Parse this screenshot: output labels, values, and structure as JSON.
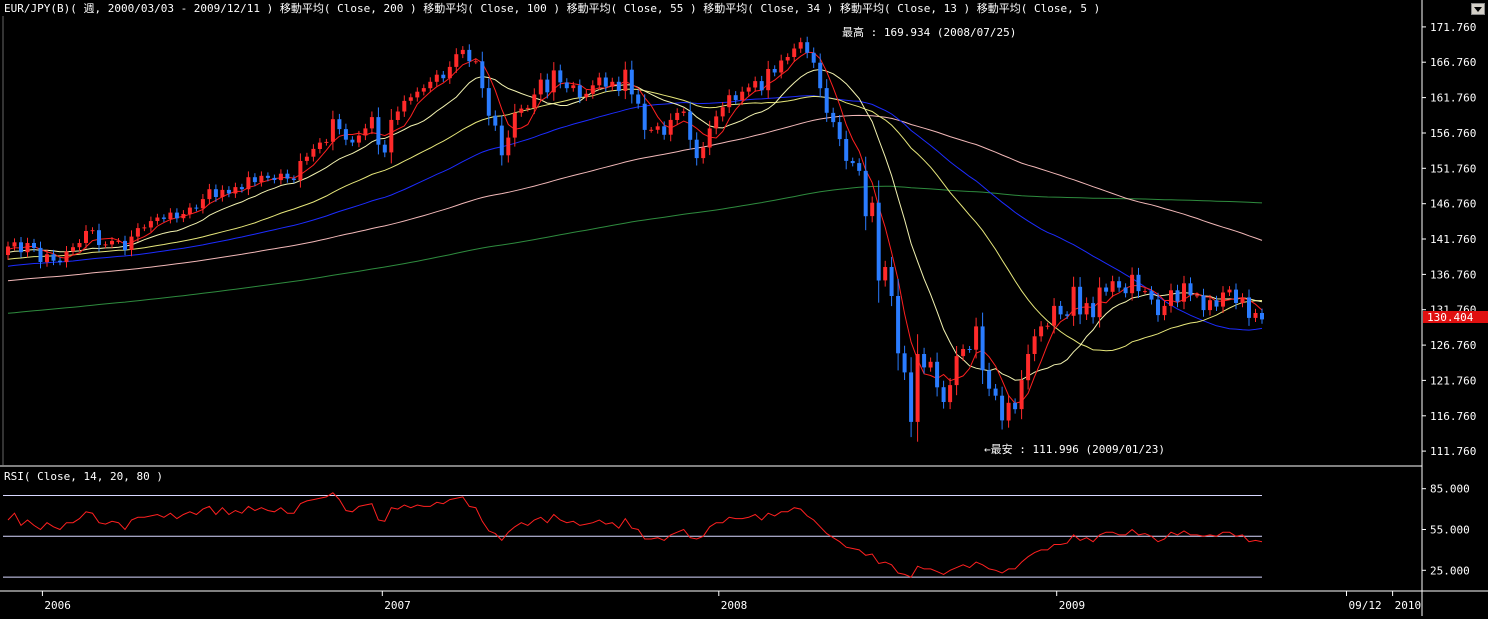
{
  "header": {
    "main_title": "EUR/JPY(B)( 週, 2000/03/03 - 2009/12/11 )  移動平均( Close, 200 )  移動平均( Close, 100 )  移動平均( Close, 55 )  移動平均( Close, 34 )  移動平均( Close, 13 )  移動平均( Close, 5 )",
    "rsi_title": "RSI( Close, 14, 20, 80 )"
  },
  "annotations": {
    "high_label": "最高 : 169.934 (2008/07/25)",
    "low_label": "←最安 : 111.996 (2009/01/23)",
    "last_price": "130.404"
  },
  "colors": {
    "up": "#ff2a2a",
    "down": "#2a7cff",
    "ma200": "#2e8b3e",
    "ma100": "#f2b8b8",
    "ma55": "#1c2cff",
    "ma34": "#e6e67a",
    "ma13": "#f2f2b0",
    "ma5": "#ff2020",
    "rsi": "#ff2020",
    "rsi_levels": "#d8d8ff",
    "frame": "#ffffff",
    "price_tag": "#e01010"
  },
  "chart_data": [
    {
      "type": "candlestick",
      "title": "EUR/JPY(B)( 週, 2000/03/03 - 2009/12/11 )",
      "series_names": [
        "移動平均( Close, 200 )",
        "移動平均( Close, 100 )",
        "移動平均( Close, 55 )",
        "移動平均( Close, 34 )",
        "移動平均( Close, 13 )",
        "移動平均( Close, 5 )"
      ],
      "y_ticks": [
        "171.760",
        "166.760",
        "161.760",
        "156.760",
        "151.760",
        "146.760",
        "141.760",
        "136.760",
        "131.760",
        "126.760",
        "121.760",
        "116.760",
        "111.760"
      ],
      "ylim": [
        109.8,
        173.3
      ],
      "x_start": "2005/11/25",
      "x_ticks": [
        "2006",
        "2007",
        "2008",
        "2009",
        "09/12",
        "2010"
      ],
      "closes": [
        140.7,
        141.3,
        139.9,
        141.2,
        140.5,
        138.5,
        139.6,
        138.7,
        138.5,
        140,
        140.6,
        141.2,
        142.9,
        143,
        140.9,
        141,
        141.5,
        141.5,
        140.2,
        142.1,
        143.3,
        143.4,
        144.3,
        144.8,
        144.6,
        145.5,
        144.7,
        145.3,
        146.2,
        146.1,
        147.4,
        148.8,
        147.7,
        148.7,
        148.2,
        149.1,
        148.8,
        150.5,
        149.8,
        150.7,
        150.4,
        150.1,
        151,
        150.3,
        150.1,
        152.8,
        153.4,
        154.5,
        155.4,
        155.5,
        158.7,
        157.3,
        155.8,
        155.4,
        156.4,
        157.4,
        159,
        155.1,
        154,
        158.6,
        159.8,
        161.3,
        161.8,
        162.6,
        163.1,
        164,
        165,
        164.5,
        166.1,
        167.9,
        168.5,
        166.9,
        166.9,
        163.1,
        159.2,
        157.8,
        153.6,
        156.1,
        159.6,
        160.2,
        160.3,
        162.2,
        164.3,
        162.5,
        165.6,
        163.9,
        163.1,
        163.5,
        161.8,
        162.3,
        163.5,
        164.6,
        163.3,
        164,
        162.7,
        165.7,
        162.2,
        160.9,
        157.2,
        157.2,
        157.7,
        156.5,
        158.6,
        159.6,
        159.8,
        155.8,
        153.2,
        154.7,
        157.4,
        159.1,
        160.4,
        162.1,
        161.4,
        162.6,
        163.2,
        164.1,
        162.8,
        165.8,
        165.3,
        167,
        167.5,
        168.7,
        169.6,
        168.1,
        166.7,
        163.1,
        159.6,
        158.3,
        155.9,
        152.8,
        152.5,
        151.4,
        145,
        146.9,
        135.9,
        137.8,
        133.7,
        125.6,
        122.9,
        115.9,
        125.5,
        123.6,
        124.4,
        120.8,
        118.7,
        121.1,
        125.2,
        126.2,
        126.1,
        129.4,
        123.2,
        120.6,
        119.6,
        116.1,
        118.6,
        117.7,
        121.8,
        125.5,
        128,
        129.4,
        129.5,
        132.3,
        131.1,
        130.9,
        135,
        131.1,
        132.7,
        130.7,
        134.9,
        134.3,
        135.8,
        134.9,
        134.1,
        136.7,
        134.4,
        134.4,
        133.2,
        131,
        132.3,
        134.5,
        132.9,
        135.5,
        133.8,
        133.8,
        131.7,
        133.1,
        132.2,
        134.2,
        134.6,
        132.7,
        133.5,
        130.6,
        131.3,
        130.4
      ],
      "rsi": {
        "title": "RSI( Close, 14, 20, 80 )",
        "levels": [
          80,
          50,
          20
        ],
        "y_ticks": [
          "85.000",
          "55.000",
          "25.000"
        ],
        "ylim": [
          10.5,
          99.5
        ],
        "values": [
          62,
          67,
          58,
          62,
          58,
          55,
          60,
          57,
          55,
          60,
          60,
          63,
          68,
          67,
          60,
          59,
          61,
          60,
          55,
          62,
          64,
          64,
          65,
          66,
          64,
          67,
          63,
          66,
          68,
          66,
          70,
          72,
          66,
          71,
          66,
          69,
          67,
          72,
          69,
          71,
          69,
          68,
          71,
          67,
          67,
          74,
          76,
          77,
          78,
          79,
          82,
          77,
          69,
          68,
          72,
          73,
          74,
          62,
          61,
          71,
          70,
          73,
          71,
          73,
          72,
          72,
          75,
          74,
          77,
          78,
          79,
          72,
          71,
          61,
          54,
          52,
          47,
          53,
          57,
          60,
          58,
          62,
          64,
          60,
          66,
          62,
          60,
          61,
          58,
          59,
          60,
          62,
          59,
          60,
          56,
          63,
          56,
          55,
          48,
          48,
          49,
          47,
          51,
          53,
          55,
          49,
          48,
          50,
          57,
          60,
          60,
          64,
          63,
          63,
          64,
          66,
          62,
          67,
          65,
          68,
          68,
          71,
          70,
          65,
          62,
          57,
          52,
          49,
          46,
          42,
          41,
          40,
          36,
          37,
          30,
          31,
          29,
          23,
          22,
          20,
          28,
          26,
          26,
          24,
          22,
          25,
          27,
          29,
          27,
          31,
          29,
          26,
          25,
          23,
          26,
          26,
          31,
          35,
          38,
          40,
          40,
          44,
          44,
          45,
          51,
          47,
          49,
          46,
          51,
          53,
          53,
          51,
          51,
          55,
          51,
          52,
          50,
          46,
          48,
          53,
          51,
          54,
          51,
          51,
          50,
          51,
          50,
          53,
          53,
          50,
          51,
          46,
          47,
          46
        ]
      }
    }
  ]
}
